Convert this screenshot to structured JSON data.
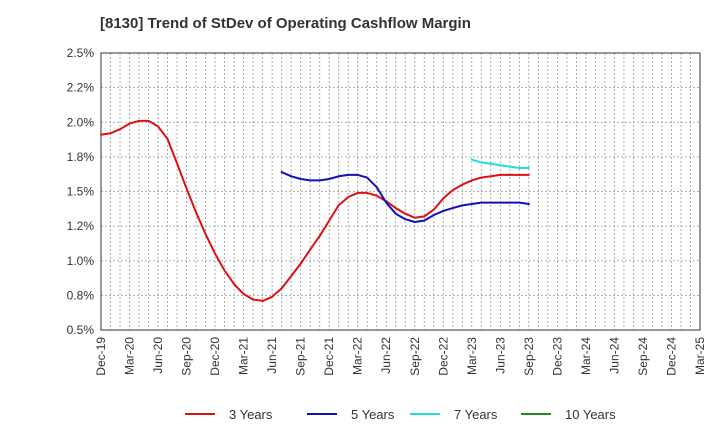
{
  "title": "[8130]  Trend of StDev of Operating Cashflow Margin",
  "chart_data": {
    "type": "line",
    "title": "[8130]  Trend of StDev of Operating Cashflow Margin",
    "xlabel": "",
    "ylabel": "",
    "categories": [
      "Dec-19",
      "Mar-20",
      "Jun-20",
      "Sep-20",
      "Dec-20",
      "Mar-21",
      "Jun-21",
      "Sep-21",
      "Dec-21",
      "Mar-22",
      "Jun-22",
      "Sep-22",
      "Dec-22",
      "Mar-23",
      "Jun-23",
      "Sep-23",
      "Dec-23",
      "Mar-24",
      "Jun-24",
      "Sep-24",
      "Dec-24",
      "Mar-25"
    ],
    "ylim": [
      0.5,
      2.5
    ],
    "yticks": [
      0.5,
      0.75,
      1.0,
      1.25,
      1.5,
      1.75,
      2.0,
      2.25,
      2.5
    ],
    "ytick_labels": [
      "0.5%",
      "0.8%",
      "1.0%",
      "1.2%",
      "1.5%",
      "1.8%",
      "2.0%",
      "2.2%",
      "2.5%"
    ],
    "grid": true,
    "legend_position": "bottom",
    "series": [
      {
        "name": "3 Years",
        "color": "#dd1111",
        "points": [
          [
            0,
            1.91
          ],
          [
            0.33,
            1.92
          ],
          [
            0.67,
            1.95
          ],
          [
            1,
            1.99
          ],
          [
            1.33,
            2.01
          ],
          [
            1.67,
            2.01
          ],
          [
            2,
            1.97
          ],
          [
            2.33,
            1.88
          ],
          [
            2.67,
            1.7
          ],
          [
            3,
            1.52
          ],
          [
            3.33,
            1.35
          ],
          [
            3.67,
            1.19
          ],
          [
            4,
            1.05
          ],
          [
            4.33,
            0.93
          ],
          [
            4.67,
            0.83
          ],
          [
            5,
            0.76
          ],
          [
            5.33,
            0.72
          ],
          [
            5.67,
            0.71
          ],
          [
            6,
            0.74
          ],
          [
            6.33,
            0.8
          ],
          [
            6.67,
            0.89
          ],
          [
            7,
            0.98
          ],
          [
            7.33,
            1.08
          ],
          [
            7.67,
            1.18
          ],
          [
            8,
            1.29
          ],
          [
            8.33,
            1.4
          ],
          [
            8.67,
            1.46
          ],
          [
            9,
            1.49
          ],
          [
            9.33,
            1.49
          ],
          [
            9.67,
            1.47
          ],
          [
            10,
            1.43
          ],
          [
            10.33,
            1.38
          ],
          [
            10.67,
            1.34
          ],
          [
            11,
            1.31
          ],
          [
            11.33,
            1.32
          ],
          [
            11.67,
            1.37
          ],
          [
            12,
            1.45
          ],
          [
            12.33,
            1.51
          ],
          [
            12.67,
            1.55
          ],
          [
            13,
            1.58
          ],
          [
            13.33,
            1.6
          ],
          [
            13.67,
            1.61
          ],
          [
            14,
            1.62
          ],
          [
            14.33,
            1.62
          ],
          [
            14.67,
            1.62
          ],
          [
            15,
            1.62
          ]
        ]
      },
      {
        "name": "5 Years",
        "color": "#1111bb",
        "points": [
          [
            6.33,
            1.64
          ],
          [
            6.67,
            1.61
          ],
          [
            7,
            1.59
          ],
          [
            7.33,
            1.58
          ],
          [
            7.67,
            1.58
          ],
          [
            8,
            1.59
          ],
          [
            8.33,
            1.61
          ],
          [
            8.67,
            1.62
          ],
          [
            9,
            1.62
          ],
          [
            9.33,
            1.6
          ],
          [
            9.67,
            1.53
          ],
          [
            10,
            1.42
          ],
          [
            10.33,
            1.34
          ],
          [
            10.67,
            1.3
          ],
          [
            11,
            1.28
          ],
          [
            11.33,
            1.29
          ],
          [
            11.67,
            1.33
          ],
          [
            12,
            1.36
          ],
          [
            12.33,
            1.38
          ],
          [
            12.67,
            1.4
          ],
          [
            13,
            1.41
          ],
          [
            13.33,
            1.42
          ],
          [
            13.67,
            1.42
          ],
          [
            14,
            1.42
          ],
          [
            14.33,
            1.42
          ],
          [
            14.67,
            1.42
          ],
          [
            15,
            1.41
          ]
        ]
      },
      {
        "name": "7 Years",
        "color": "#22dddd",
        "points": [
          [
            13,
            1.73
          ],
          [
            13.33,
            1.71
          ],
          [
            13.67,
            1.7
          ],
          [
            14,
            1.69
          ],
          [
            14.33,
            1.68
          ],
          [
            14.67,
            1.67
          ],
          [
            15,
            1.67
          ]
        ]
      },
      {
        "name": "10 Years",
        "color": "#228822",
        "points": []
      }
    ]
  }
}
